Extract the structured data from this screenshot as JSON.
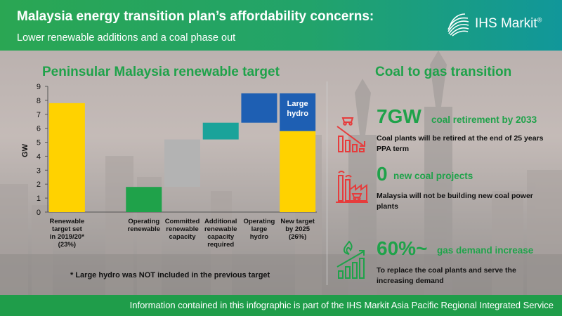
{
  "header": {
    "title": "Malaysia energy transition plan’s affordability concerns:",
    "subtitle": "Lower renewable additions and a coal phase out",
    "logo_text": "IHS Markit",
    "logo_mark": "®"
  },
  "left": {
    "title": "Peninsular Malaysia renewable target",
    "footnote": "* Large hydro was NOT included in the previous target"
  },
  "chart_data": {
    "type": "bar",
    "subtype": "waterfall",
    "ylabel": "GW",
    "ylim": [
      0,
      9
    ],
    "yticks": [
      0,
      1,
      2,
      3,
      4,
      5,
      6,
      7,
      8,
      9
    ],
    "categories": [
      [
        "Renewable",
        "target set",
        "in 2019/20*",
        "(23%)"
      ],
      [
        "Operating",
        "renewable"
      ],
      [
        "Committed",
        "renewable",
        "capacity"
      ],
      [
        "Additional",
        "renewable",
        "capacity",
        "required"
      ],
      [
        "Operating",
        "large",
        "hydro"
      ],
      [
        "New target",
        "by 2025",
        "(26%)"
      ]
    ],
    "bars": [
      {
        "base": 0,
        "value": 7.8,
        "color": "#ffd200"
      },
      {
        "base": 0,
        "value": 1.8,
        "color": "#1fa24a"
      },
      {
        "base": 1.8,
        "value": 3.4,
        "color": "#b3b3b3"
      },
      {
        "base": 5.2,
        "value": 1.2,
        "color": "#1aa39a"
      },
      {
        "base": 6.4,
        "value": 2.1,
        "color": "#1e5fb3"
      },
      {
        "base": 0,
        "value": 5.8,
        "color": "#ffd200",
        "stack_value": 2.7,
        "stack_color": "#1e5fb3",
        "stack_label": [
          "Large",
          "hydro"
        ]
      }
    ],
    "grid": false,
    "gap_after_first": true
  },
  "right": {
    "title": "Coal to gas transition",
    "items": [
      {
        "big": "7GW",
        "small": "coal retirement by 2033",
        "desc": "Coal plants will be retired at the end of 25 years PPA term",
        "icon": "coal-decline-icon"
      },
      {
        "big": "0",
        "small": "new coal projects",
        "desc": "Malaysia will not be building new coal power plants",
        "icon": "coal-factory-icon"
      },
      {
        "big": "60%~",
        "small": "gas demand increase",
        "desc": "To replace the coal plants and serve the increasing demand",
        "icon": "gas-growth-icon"
      }
    ],
    "colors": {
      "accent": "#1fa24a",
      "icon_red": "#e63c3c"
    }
  },
  "footer": {
    "text": "Information contained in this infographic is part of the IHS Markit Asia Pacific Regional Integrated Service"
  }
}
